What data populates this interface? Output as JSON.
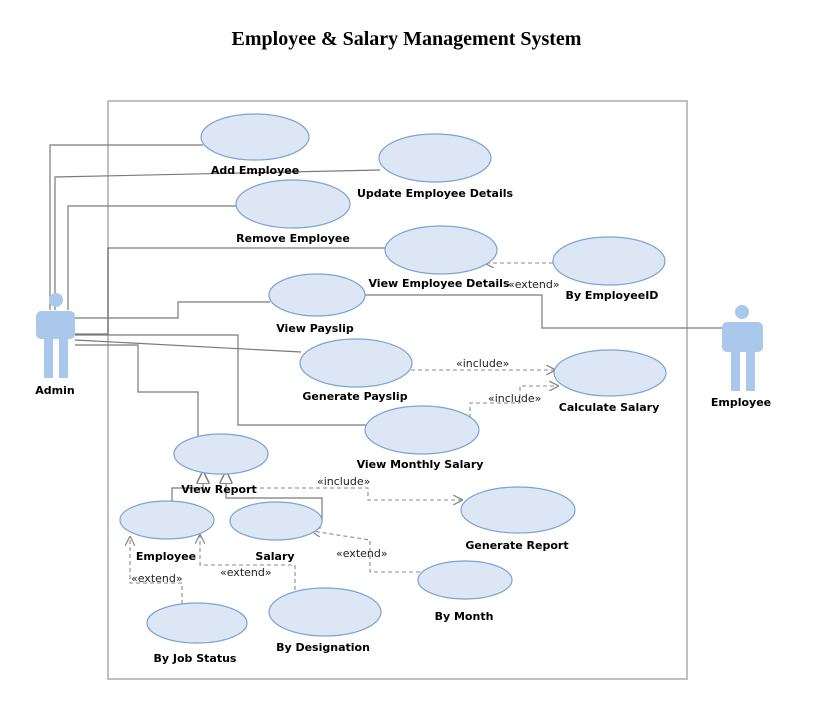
{
  "title": "Employee & Salary Management System",
  "actors": {
    "admin": "Admin",
    "employee": "Employee"
  },
  "use_cases": {
    "add_employee": "Add Employee",
    "update_employee_details": "Update Employee Details",
    "remove_employee": "Remove Employee",
    "view_employee_details": "View Employee Details",
    "by_employee_id": "By EmployeeID",
    "view_payslip": "View Payslip",
    "generate_payslip": "Generate Payslip",
    "calculate_salary": "Calculate Salary",
    "view_monthly_salary": "View Monthly Salary",
    "view_report": "View Report",
    "employee": "Employee",
    "salary": "Salary",
    "generate_report": "Generate Report",
    "by_month": "By Month",
    "by_designation": "By Designation",
    "by_job_status": "By Job Status"
  },
  "relations": {
    "extend_employee_id": "«extend»",
    "include_generate_payslip": "«include»",
    "include_monthly_salary": "«include»",
    "include_view_report": "«include»",
    "extend_by_month": "«extend»",
    "extend_by_designation": "«extend»",
    "extend_by_job_status": "«extend»"
  },
  "colors": {
    "use_case_fill": "#dce6f4",
    "use_case_stroke": "#7aa4d0",
    "actor": "#a9c8ec",
    "boundary": "#c0c0c0"
  }
}
